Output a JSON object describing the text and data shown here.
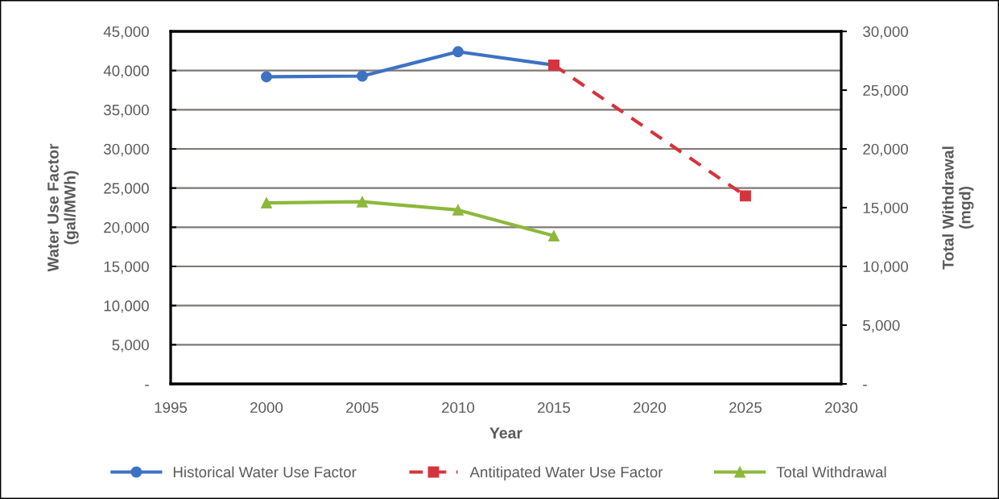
{
  "chart_data": {
    "type": "line",
    "xlabel": "Year",
    "ylabel": "Water Use Factor\n(gal/MWh)",
    "y2label": "Total Withdrawal\n(mgd)",
    "xlim": [
      1995,
      2030
    ],
    "xticks": [
      1995,
      2000,
      2005,
      2010,
      2015,
      2020,
      2025,
      2030
    ],
    "ylim": [
      0,
      45000
    ],
    "yticks": [
      {
        "value": 0,
        "label": "-"
      },
      {
        "value": 5000,
        "label": "5,000"
      },
      {
        "value": 10000,
        "label": "10,000"
      },
      {
        "value": 15000,
        "label": "15,000"
      },
      {
        "value": 20000,
        "label": "20,000"
      },
      {
        "value": 25000,
        "label": "25,000"
      },
      {
        "value": 30000,
        "label": "30,000"
      },
      {
        "value": 35000,
        "label": "35,000"
      },
      {
        "value": 40000,
        "label": "40,000"
      },
      {
        "value": 45000,
        "label": "45,000"
      }
    ],
    "y2lim": [
      0,
      30000
    ],
    "y2ticks": [
      {
        "value": 0,
        "label": "-"
      },
      {
        "value": 5000,
        "label": "5,000"
      },
      {
        "value": 10000,
        "label": "10,000"
      },
      {
        "value": 15000,
        "label": "15,000"
      },
      {
        "value": 20000,
        "label": "20,000"
      },
      {
        "value": 25000,
        "label": "25,000"
      },
      {
        "value": 30000,
        "label": "30,000"
      }
    ],
    "grid": "y",
    "legend": "bottom",
    "series": [
      {
        "name": "Historical Water Use Factor",
        "color": "#3d72c3",
        "x": [
          2000,
          2005,
          2010,
          2015
        ],
        "values": [
          39200,
          39300,
          42400,
          40700
        ],
        "marker": "circle",
        "line_style": "solid"
      },
      {
        "name": "Antitipated Water Use Factor",
        "color": "#d5343d",
        "x": [
          2015,
          2025
        ],
        "values": [
          40700,
          24000
        ],
        "marker": "square",
        "line_style": "dashed"
      },
      {
        "name": "Total Withdrawal",
        "color": "#8db83c",
        "x": [
          2000,
          2005,
          2010,
          2015
        ],
        "values": [
          15400,
          15500,
          14800,
          12600
        ],
        "marker": "triangle",
        "line_style": "solid",
        "axis": "y2"
      }
    ]
  }
}
